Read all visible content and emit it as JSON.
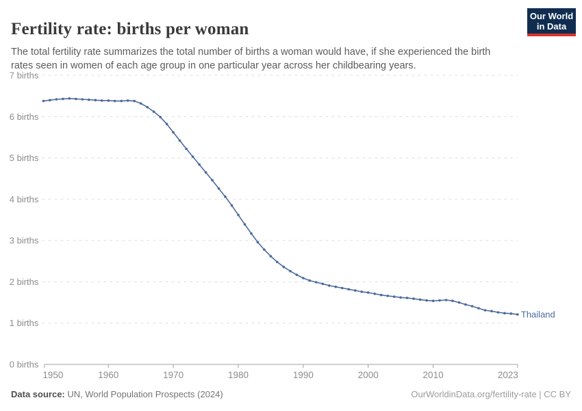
{
  "header": {
    "title": "Fertility rate: births per woman",
    "subtitle": "The total fertility rate summarizes the total number of births a woman would have, if she experienced the birth rates seen in women of each age group in one particular year across her childbearing years.",
    "logo": {
      "line1": "Our World",
      "line2": "in Data",
      "bg_color": "#102d50",
      "accent_color": "#d7352c"
    }
  },
  "chart_data": {
    "type": "line",
    "title": "Fertility rate: births per woman",
    "xlabel": "",
    "ylabel": "births",
    "xlim": [
      1950,
      2023
    ],
    "ylim": [
      0,
      7
    ],
    "grid": "horizontal-dashed",
    "legend_position": "end-of-line",
    "x_ticks": [
      1950,
      1960,
      1970,
      1980,
      1990,
      2000,
      2010,
      2023
    ],
    "y_ticks": [
      {
        "value": 0,
        "label": "0 births"
      },
      {
        "value": 1,
        "label": "1 births"
      },
      {
        "value": 2,
        "label": "2 births"
      },
      {
        "value": 3,
        "label": "3 births"
      },
      {
        "value": 4,
        "label": "4 births"
      },
      {
        "value": 5,
        "label": "5 births"
      },
      {
        "value": 6,
        "label": "6 births"
      },
      {
        "value": 7,
        "label": "7 births"
      }
    ],
    "series": [
      {
        "name": "Thailand",
        "color": "#4C6A9C",
        "x": [
          1950,
          1951,
          1952,
          1953,
          1954,
          1955,
          1956,
          1957,
          1958,
          1959,
          1960,
          1961,
          1962,
          1963,
          1964,
          1965,
          1966,
          1967,
          1968,
          1969,
          1970,
          1971,
          1972,
          1973,
          1974,
          1975,
          1976,
          1977,
          1978,
          1979,
          1980,
          1981,
          1982,
          1983,
          1984,
          1985,
          1986,
          1987,
          1988,
          1989,
          1990,
          1991,
          1992,
          1993,
          1994,
          1995,
          1996,
          1997,
          1998,
          1999,
          2000,
          2001,
          2002,
          2003,
          2004,
          2005,
          2006,
          2007,
          2008,
          2009,
          2010,
          2011,
          2012,
          2013,
          2014,
          2015,
          2016,
          2017,
          2018,
          2019,
          2020,
          2021,
          2022,
          2023
        ],
        "values": [
          6.38,
          6.4,
          6.42,
          6.43,
          6.44,
          6.43,
          6.42,
          6.41,
          6.4,
          6.39,
          6.39,
          6.38,
          6.38,
          6.39,
          6.38,
          6.32,
          6.23,
          6.12,
          5.99,
          5.82,
          5.62,
          5.42,
          5.22,
          5.03,
          4.84,
          4.65,
          4.46,
          4.26,
          4.06,
          3.85,
          3.62,
          3.39,
          3.17,
          2.96,
          2.78,
          2.62,
          2.48,
          2.36,
          2.26,
          2.17,
          2.09,
          2.03,
          1.99,
          1.95,
          1.91,
          1.88,
          1.85,
          1.82,
          1.79,
          1.76,
          1.74,
          1.71,
          1.68,
          1.66,
          1.64,
          1.62,
          1.61,
          1.59,
          1.57,
          1.55,
          1.54,
          1.55,
          1.56,
          1.54,
          1.5,
          1.45,
          1.41,
          1.36,
          1.31,
          1.29,
          1.26,
          1.24,
          1.23,
          1.21
        ]
      }
    ]
  },
  "footer": {
    "source_label": "Data source:",
    "source_text": " UN, World Population Prospects (2024)",
    "link_text": "OurWorldinData.org/fertility-rate | CC BY"
  },
  "colors": {
    "series_blue": "#4C6A9C",
    "gridline": "#dddddd",
    "axis": "#a0a0a0",
    "tick_label": "#8c8c8c",
    "title": "#3a3a3a",
    "subtitle": "#5b5b5b"
  }
}
